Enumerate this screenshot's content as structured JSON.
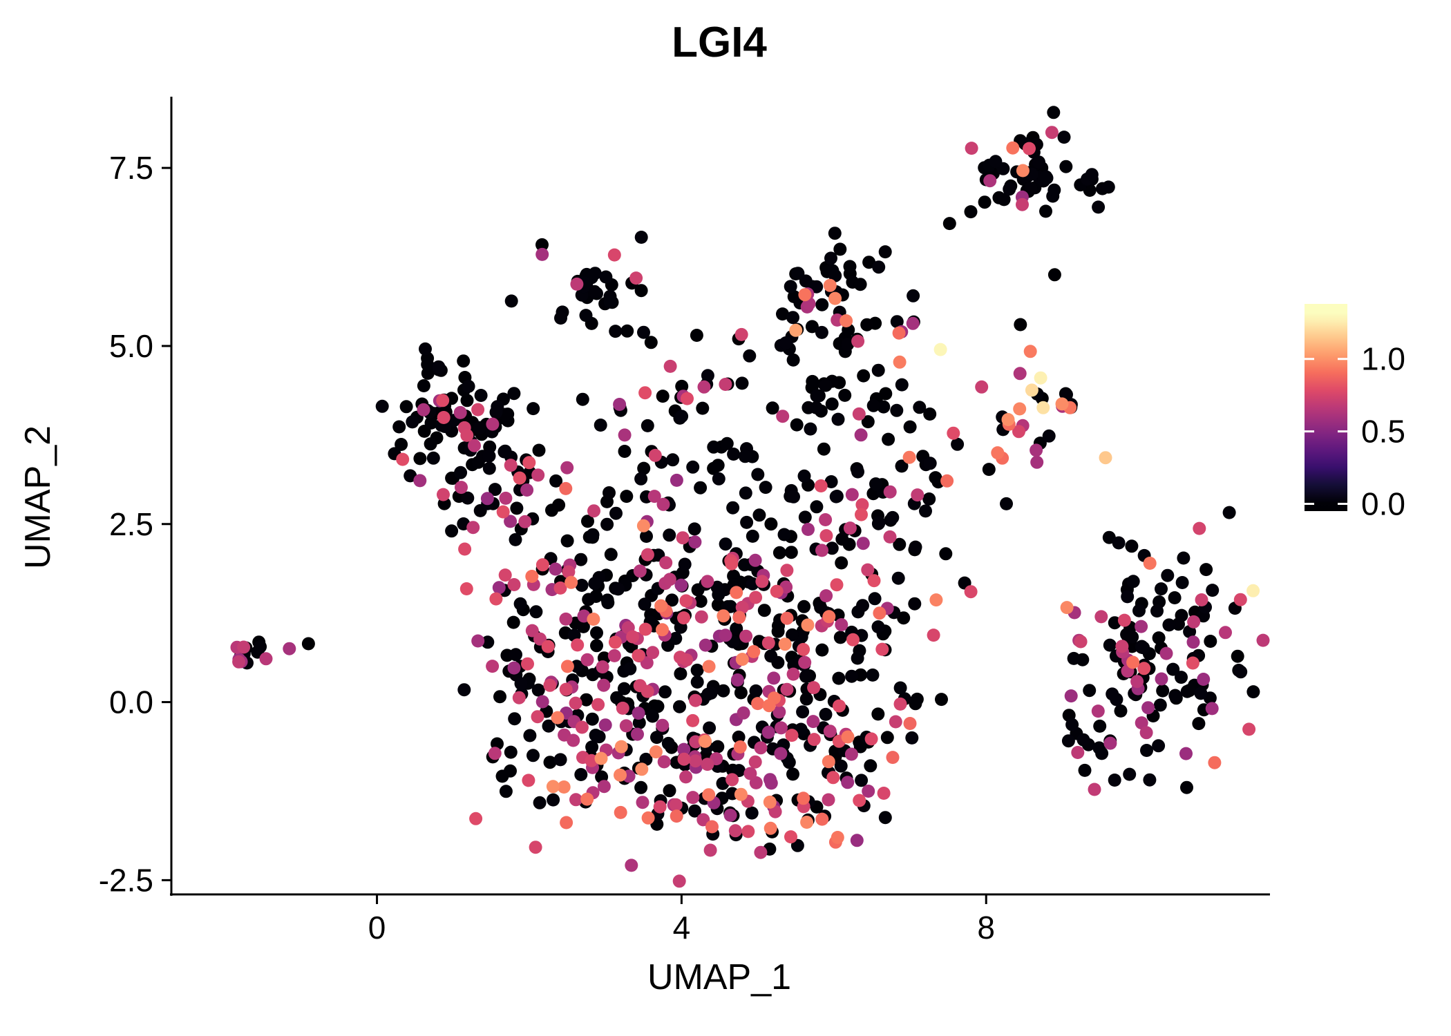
{
  "chart_data": {
    "type": "scatter",
    "title": "LGI4",
    "xlabel": "UMAP_1",
    "ylabel": "UMAP_2",
    "xlim": [
      -2.7,
      11.7
    ],
    "ylim": [
      -2.7,
      8.5
    ],
    "grid": false,
    "point_radius": 9.5,
    "seed": 11,
    "value_max": 1.3,
    "xticks": [
      {
        "v": 0,
        "label": "0"
      },
      {
        "v": 4,
        "label": "4"
      },
      {
        "v": 8,
        "label": "8"
      }
    ],
    "yticks": [
      {
        "v": -2.5,
        "label": "-2.5"
      },
      {
        "v": 0.0,
        "label": "0.0"
      },
      {
        "v": 2.5,
        "label": "2.5"
      },
      {
        "v": 5.0,
        "label": "5.0"
      },
      {
        "v": 7.5,
        "label": "7.5"
      }
    ],
    "colormap": {
      "name": "magma",
      "stops": [
        [
          0.0,
          "#000004"
        ],
        [
          0.1,
          "#140e36"
        ],
        [
          0.2,
          "#3b0f70"
        ],
        [
          0.3,
          "#641a80"
        ],
        [
          0.4,
          "#8c2981"
        ],
        [
          0.5,
          "#b73779"
        ],
        [
          0.6,
          "#de4968"
        ],
        [
          0.7,
          "#f76f5c"
        ],
        [
          0.8,
          "#fe9f6d"
        ],
        [
          0.9,
          "#fecf92"
        ],
        [
          1.0,
          "#fcfdbf"
        ]
      ]
    },
    "colorbar": {
      "position": "right",
      "vmin": -0.05,
      "vmax": 1.38,
      "ticks": [
        {
          "v": 0.0,
          "label": "0.0"
        },
        {
          "v": 0.5,
          "label": "0.5"
        },
        {
          "v": 1.0,
          "label": "1.0"
        }
      ]
    },
    "value_bins": {
      "zero": [
        0.0,
        0.02
      ],
      "mid": [
        0.55,
        0.8
      ],
      "high": [
        0.88,
        1.0
      ],
      "pale": [
        1.15,
        1.3
      ]
    },
    "clusters": [
      {
        "name": "far-left-island",
        "cx": -1.65,
        "cy": 0.68,
        "sx": 0.14,
        "sy": 0.1,
        "n": 14,
        "mix": {
          "zero": 0.55,
          "mid": 0.45,
          "high": 0,
          "pale": 0
        }
      },
      {
        "name": "upper-left-core",
        "cx": 1.05,
        "cy": 4.05,
        "sx": 0.45,
        "sy": 0.45,
        "n": 78,
        "mix": {
          "zero": 0.78,
          "mid": 0.22,
          "high": 0,
          "pale": 0
        }
      },
      {
        "name": "upper-left-lower",
        "cx": 1.55,
        "cy": 3.0,
        "sx": 0.5,
        "sy": 0.4,
        "n": 40,
        "mix": {
          "zero": 0.68,
          "mid": 0.32,
          "high": 0,
          "pale": 0
        }
      },
      {
        "name": "mid-top-small",
        "cx": 2.9,
        "cy": 5.75,
        "sx": 0.32,
        "sy": 0.28,
        "n": 34,
        "mix": {
          "zero": 0.88,
          "mid": 0.12,
          "high": 0,
          "pale": 0
        }
      },
      {
        "name": "upper-mid-band",
        "cx": 3.8,
        "cy": 4.25,
        "sx": 0.65,
        "sy": 0.3,
        "n": 24,
        "mix": {
          "zero": 0.8,
          "mid": 0.2,
          "high": 0,
          "pale": 0
        }
      },
      {
        "name": "top-middle-core",
        "cx": 6.0,
        "cy": 5.5,
        "sx": 0.45,
        "sy": 0.4,
        "n": 55,
        "mix": {
          "zero": 0.85,
          "mid": 0.07,
          "high": 0.08,
          "pale": 0
        }
      },
      {
        "name": "top-middle-lower",
        "cx": 5.85,
        "cy": 4.5,
        "sx": 0.5,
        "sy": 0.35,
        "n": 30,
        "mix": {
          "zero": 0.84,
          "mid": 0.11,
          "high": 0.05,
          "pale": 0
        }
      },
      {
        "name": "top-right",
        "cx": 8.65,
        "cy": 7.45,
        "sx": 0.42,
        "sy": 0.28,
        "n": 56,
        "mix": {
          "zero": 0.87,
          "mid": 0.1,
          "high": 0.03,
          "pale": 0
        }
      },
      {
        "name": "right-mid",
        "cx": 8.75,
        "cy": 4.15,
        "sx": 0.42,
        "sy": 0.4,
        "n": 26,
        "mix": {
          "zero": 0.55,
          "mid": 0.2,
          "high": 0.2,
          "pale": 0.05
        }
      },
      {
        "name": "right-lower-core",
        "cx": 10.3,
        "cy": 0.7,
        "sx": 0.6,
        "sy": 0.7,
        "n": 112,
        "mix": {
          "zero": 0.68,
          "mid": 0.28,
          "high": 0.03,
          "pale": 0.01
        }
      },
      {
        "name": "right-lower-west",
        "cx": 9.6,
        "cy": -0.55,
        "sx": 0.35,
        "sy": 0.45,
        "n": 26,
        "mix": {
          "zero": 0.6,
          "mid": 0.4,
          "high": 0,
          "pale": 0
        }
      },
      {
        "name": "center-upper",
        "cx": 4.6,
        "cy": 0.95,
        "sx": 1.05,
        "sy": 0.75,
        "n": 165,
        "mix": {
          "zero": 0.6,
          "mid": 0.33,
          "high": 0.07,
          "pale": 0
        }
      },
      {
        "name": "center-lower",
        "cx": 4.3,
        "cy": -0.9,
        "sx": 1.15,
        "sy": 0.55,
        "n": 120,
        "mix": {
          "zero": 0.58,
          "mid": 0.32,
          "high": 0.1,
          "pale": 0
        }
      },
      {
        "name": "center-east",
        "cx": 5.9,
        "cy": 0.35,
        "sx": 0.65,
        "sy": 0.9,
        "n": 80,
        "mix": {
          "zero": 0.62,
          "mid": 0.31,
          "high": 0.07,
          "pale": 0
        }
      },
      {
        "name": "center-west",
        "cx": 3.0,
        "cy": 0.3,
        "sx": 0.7,
        "sy": 0.8,
        "n": 80,
        "mix": {
          "zero": 0.6,
          "mid": 0.4,
          "high": 0,
          "pale": 0
        }
      },
      {
        "name": "left-bridge",
        "cx": 2.0,
        "cy": 0.3,
        "sx": 0.45,
        "sy": 0.85,
        "n": 55,
        "mix": {
          "zero": 0.52,
          "mid": 0.43,
          "high": 0.05,
          "pale": 0
        }
      },
      {
        "name": "center-top-band",
        "cx": 4.8,
        "cy": 2.2,
        "sx": 1.15,
        "sy": 0.5,
        "n": 60,
        "mix": {
          "zero": 0.7,
          "mid": 0.25,
          "high": 0.05,
          "pale": 0
        }
      },
      {
        "name": "center-northeast",
        "cx": 6.5,
        "cy": 2.8,
        "sx": 0.6,
        "sy": 0.65,
        "n": 30,
        "mix": {
          "zero": 0.75,
          "mid": 0.2,
          "high": 0.05,
          "pale": 0
        }
      },
      {
        "name": "bottom-tail",
        "cx": 4.9,
        "cy": -1.65,
        "sx": 0.85,
        "sy": 0.3,
        "n": 35,
        "mix": {
          "zero": 0.55,
          "mid": 0.35,
          "high": 0.1,
          "pale": 0
        }
      },
      {
        "name": "left-mid-scatter",
        "cx": 2.6,
        "cy": 2.0,
        "sx": 0.5,
        "sy": 0.5,
        "n": 30,
        "mix": {
          "zero": 0.62,
          "mid": 0.33,
          "high": 0.05,
          "pale": 0
        }
      },
      {
        "name": "mid-band",
        "cx": 4.2,
        "cy": 3.3,
        "sx": 0.9,
        "sy": 0.35,
        "n": 28,
        "mix": {
          "zero": 0.8,
          "mid": 0.2,
          "high": 0,
          "pale": 0
        }
      },
      {
        "name": "east-bridge",
        "cx": 7.3,
        "cy": 3.3,
        "sx": 0.5,
        "sy": 0.6,
        "n": 20,
        "mix": {
          "zero": 0.7,
          "mid": 0.15,
          "high": 0.15,
          "pale": 0
        }
      }
    ],
    "extra_points": [
      [
        -1.15,
        0.75,
        0.6
      ],
      [
        -0.9,
        0.82,
        0
      ],
      [
        7.4,
        4.95,
        1.28
      ],
      [
        8.6,
        4.38,
        1.2
      ],
      [
        5.5,
        5.22,
        1.05
      ],
      [
        8.35,
        7.78,
        0.92
      ],
      [
        8.05,
        7.32,
        0.62
      ],
      [
        7.52,
        6.72,
        0
      ],
      [
        8.9,
        6.0,
        0
      ],
      [
        5.62,
        5.72,
        0.92
      ],
      [
        5.95,
        5.85,
        0.95
      ],
      [
        6.68,
        4.33,
        0
      ],
      [
        3.6,
        5.05,
        0
      ],
      [
        4.2,
        5.15,
        0
      ],
      [
        4.75,
        5.1,
        0
      ],
      [
        2.55,
        1.68,
        0.93
      ],
      [
        2.3,
        1.58,
        0.6
      ],
      [
        10.15,
        1.95,
        0.93
      ],
      [
        11.0,
        -0.85,
        0.9
      ],
      [
        8.15,
        3.5,
        0.93
      ],
      [
        8.3,
        3.9,
        0.9
      ],
      [
        6.05,
        -1.9,
        0.93
      ],
      [
        5.6,
        -1.35,
        0.9
      ],
      [
        3.2,
        -1.55,
        0.9
      ],
      [
        4.4,
        -1.75,
        0.88
      ],
      [
        5.0,
        -0.02,
        0.9
      ],
      [
        5.15,
        -0.05,
        0.92
      ],
      [
        7.0,
        -0.3,
        0.88
      ],
      [
        6.6,
        1.25,
        0.9
      ],
      [
        8.45,
        5.3,
        0
      ]
    ]
  }
}
